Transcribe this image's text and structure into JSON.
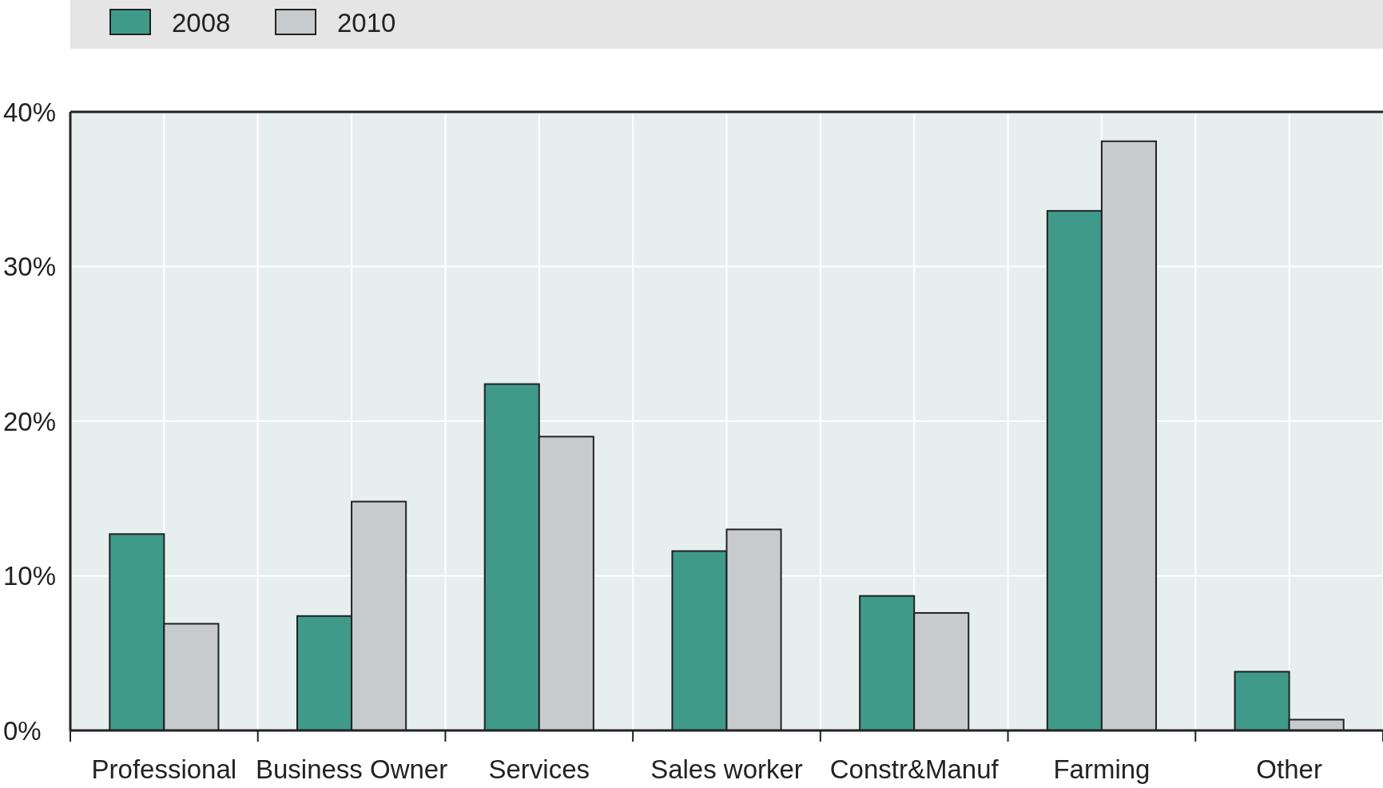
{
  "chart_data": {
    "type": "bar",
    "categories": [
      "Professional",
      "Business Owner",
      "Services",
      "Sales worker",
      "Constr&Manuf",
      "Farming",
      "Other"
    ],
    "series": [
      {
        "name": "2008",
        "color": "#3f9a8a",
        "values": [
          12.7,
          7.4,
          22.4,
          11.6,
          8.7,
          33.6,
          3.8
        ]
      },
      {
        "name": "2010",
        "color": "#c8cbcd",
        "values": [
          6.9,
          14.8,
          19.0,
          13.0,
          7.6,
          38.1,
          0.7
        ]
      }
    ],
    "ylim": [
      0,
      40
    ],
    "yticks": [
      {
        "value": 0,
        "label": "0%"
      },
      {
        "value": 10,
        "label": "10%"
      },
      {
        "value": 20,
        "label": "20%"
      },
      {
        "value": 30,
        "label": "30%"
      },
      {
        "value": 40,
        "label": "40%"
      }
    ],
    "grid": true,
    "legend": "top left"
  }
}
